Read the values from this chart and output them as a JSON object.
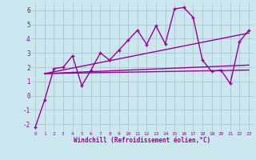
{
  "xlabel": "Windchill (Refroidissement éolien,°C)",
  "bg_color": "#cce8ef",
  "line_color": "#990099",
  "grid_color": "#aabbcc",
  "xlim": [
    -0.5,
    23.5
  ],
  "ylim": [
    -2.5,
    6.5
  ],
  "yticks": [
    -2,
    -1,
    0,
    1,
    2,
    3,
    4,
    5,
    6
  ],
  "xticks": [
    0,
    1,
    2,
    3,
    4,
    5,
    6,
    7,
    8,
    9,
    10,
    11,
    12,
    13,
    14,
    15,
    16,
    17,
    18,
    19,
    20,
    21,
    22,
    23
  ],
  "main_x": [
    0,
    1,
    2,
    3,
    4,
    5,
    6,
    7,
    8,
    9,
    10,
    11,
    12,
    13,
    14,
    15,
    16,
    17,
    18,
    19,
    20,
    21,
    22,
    23
  ],
  "main_y": [
    -2.2,
    -0.3,
    1.9,
    2.0,
    2.8,
    0.7,
    1.8,
    3.0,
    2.5,
    3.2,
    3.9,
    4.6,
    3.6,
    4.9,
    3.65,
    6.1,
    6.2,
    5.5,
    2.5,
    1.7,
    1.8,
    0.85,
    3.8,
    4.6
  ],
  "line1_x": [
    1,
    23
  ],
  "line1_y": [
    1.55,
    1.8
  ],
  "line2_x": [
    1,
    23
  ],
  "line2_y": [
    1.55,
    4.4
  ],
  "line3_x": [
    1,
    23
  ],
  "line3_y": [
    1.55,
    2.15
  ]
}
